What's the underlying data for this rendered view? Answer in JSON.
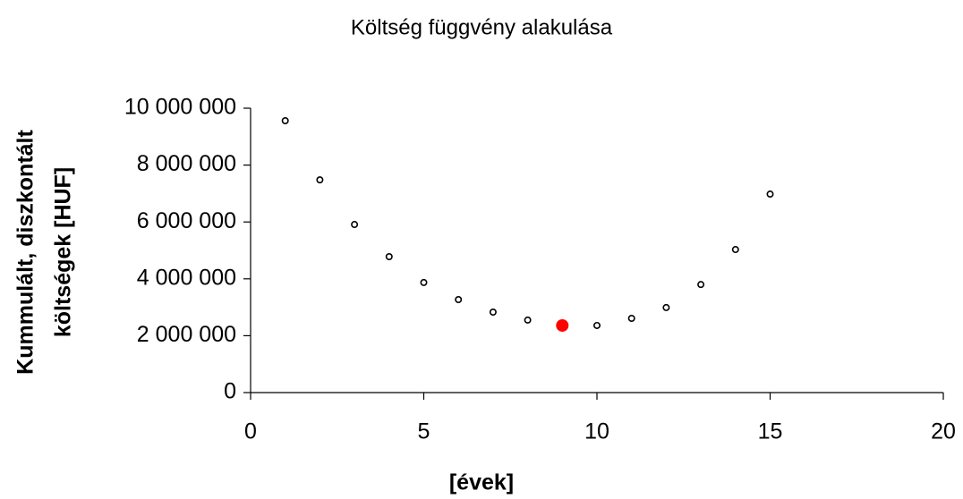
{
  "chart_data": {
    "type": "scatter",
    "title": "Költség függvény alakulása",
    "x_label": "[évek]",
    "y_label": [
      "Kummulált, diszkontált",
      "költségek [HUF]"
    ],
    "series": [
      {
        "color": "#000000",
        "marker": "hollow",
        "x": [
          1,
          2,
          3,
          4,
          5,
          6,
          7,
          8,
          10,
          11,
          12,
          13,
          14,
          15
        ],
        "values": [
          9560000,
          7480000,
          5910000,
          4780000,
          3870000,
          3270000,
          2830000,
          2550000,
          2360000,
          2610000,
          2990000,
          3800000,
          5030000,
          6980000
        ]
      },
      {
        "color": "#ff0000",
        "marker": "filled",
        "x": [
          9
        ],
        "values": [
          2360000
        ]
      }
    ],
    "xlim": [
      0,
      20
    ],
    "xticks": [
      0,
      5,
      10,
      15,
      20
    ],
    "ylim": [
      0,
      10000000
    ],
    "yticks": [
      0,
      {
        "value": 2000000,
        "label": "2 000 000"
      },
      {
        "value": 4000000,
        "label": "4 000 000"
      },
      {
        "value": 6000000,
        "label": "6 000 000"
      },
      {
        "value": 8000000,
        "label": "8 000 000"
      },
      {
        "value": 10000000,
        "label": "10 000 000"
      }
    ],
    "grid": false
  }
}
